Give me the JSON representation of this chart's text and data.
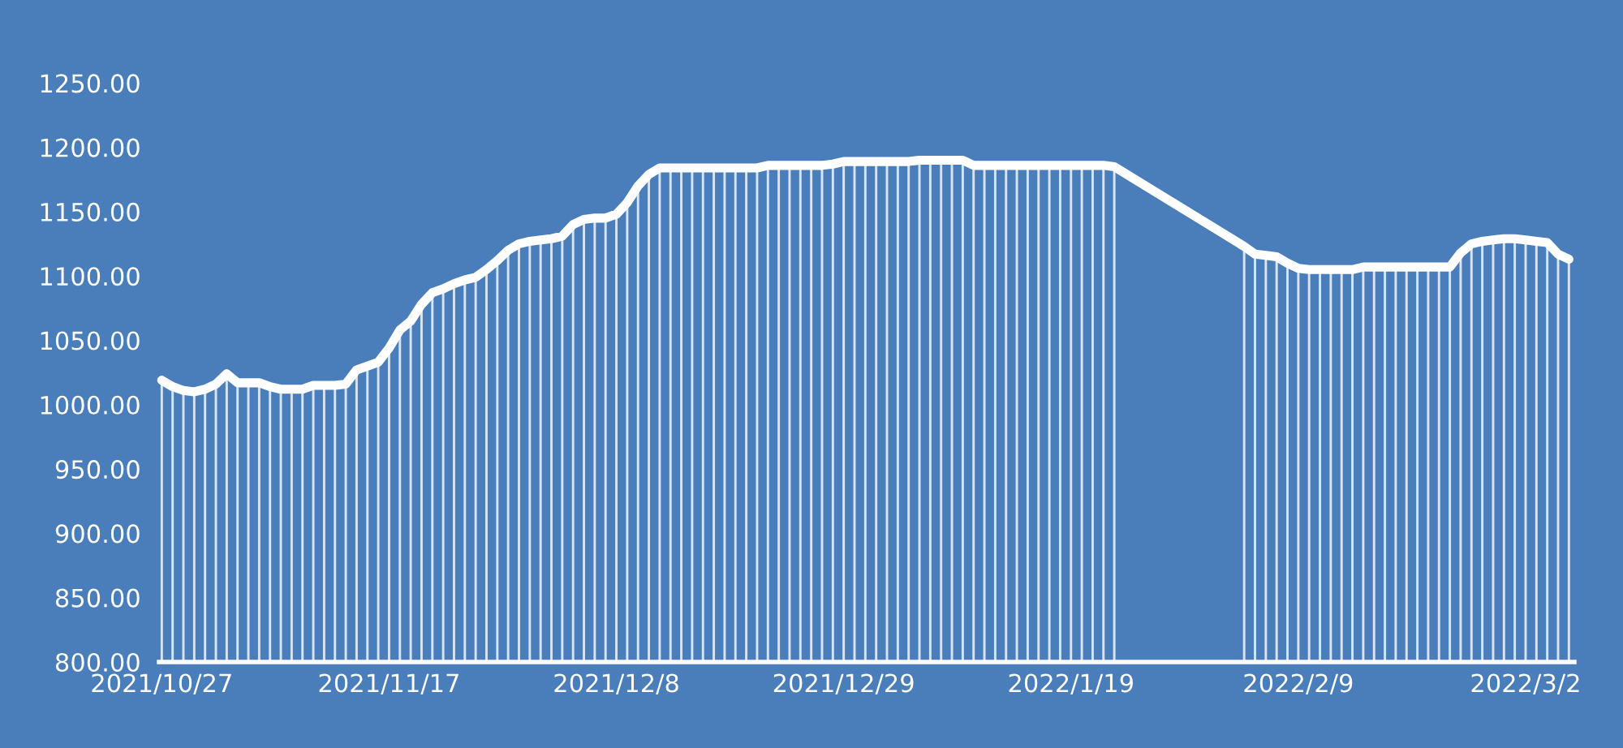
{
  "chart_data": {
    "type": "line",
    "x": [
      "2021-10-27",
      "2021-10-28",
      "2021-10-29",
      "2021-10-30",
      "2021-10-31",
      "2021-11-01",
      "2021-11-02",
      "2021-11-03",
      "2021-11-04",
      "2021-11-05",
      "2021-11-06",
      "2021-11-07",
      "2021-11-08",
      "2021-11-09",
      "2021-11-10",
      "2021-11-11",
      "2021-11-12",
      "2021-11-13",
      "2021-11-14",
      "2021-11-15",
      "2021-11-16",
      "2021-11-17",
      "2021-11-18",
      "2021-11-19",
      "2021-11-20",
      "2021-11-21",
      "2021-11-22",
      "2021-11-23",
      "2021-11-24",
      "2021-11-25",
      "2021-11-26",
      "2021-11-27",
      "2021-11-28",
      "2021-11-29",
      "2021-11-30",
      "2021-12-01",
      "2021-12-02",
      "2021-12-03",
      "2021-12-04",
      "2021-12-05",
      "2021-12-06",
      "2021-12-07",
      "2021-12-08",
      "2021-12-09",
      "2021-12-10",
      "2021-12-11",
      "2021-12-12",
      "2021-12-13",
      "2021-12-14",
      "2021-12-15",
      "2021-12-16",
      "2021-12-17",
      "2021-12-18",
      "2021-12-19",
      "2021-12-20",
      "2021-12-21",
      "2021-12-22",
      "2021-12-23",
      "2021-12-24",
      "2021-12-25",
      "2021-12-26",
      "2021-12-27",
      "2021-12-28",
      "2021-12-29",
      "2021-12-30",
      "2021-12-31",
      "2022-01-01",
      "2022-01-02",
      "2022-01-03",
      "2022-01-04",
      "2022-01-05",
      "2022-01-06",
      "2022-01-07",
      "2022-01-08",
      "2022-01-09",
      "2022-01-10",
      "2022-01-11",
      "2022-01-12",
      "2022-01-13",
      "2022-01-14",
      "2022-01-15",
      "2022-01-16",
      "2022-01-17",
      "2022-01-18",
      "2022-01-19",
      "2022-01-20",
      "2022-01-21",
      "2022-01-22",
      "2022-01-23",
      "2022-02-04",
      "2022-02-05",
      "2022-02-06",
      "2022-02-07",
      "2022-02-08",
      "2022-02-09",
      "2022-02-10",
      "2022-02-11",
      "2022-02-12",
      "2022-02-13",
      "2022-02-14",
      "2022-02-15",
      "2022-02-16",
      "2022-02-17",
      "2022-02-18",
      "2022-02-19",
      "2022-02-20",
      "2022-02-21",
      "2022-02-22",
      "2022-02-23",
      "2022-02-24",
      "2022-02-25",
      "2022-02-26",
      "2022-02-27",
      "2022-02-28",
      "2022-03-01",
      "2022-03-02",
      "2022-03-03",
      "2022-03-04",
      "2022-03-05",
      "2022-03-06"
    ],
    "series": [
      {
        "type": "bar",
        "color": "#d6e4f5",
        "values": [
          1019,
          1014,
          1011,
          1010,
          1012,
          1016,
          1024,
          1017,
          1017,
          1017,
          1014,
          1012,
          1012,
          1012,
          1015,
          1015,
          1015,
          1016,
          1027,
          1030,
          1033,
          1044,
          1058,
          1065,
          1078,
          1087,
          1090,
          1094,
          1097,
          1099,
          1105,
          1112,
          1120,
          1125,
          1127,
          1128,
          1129,
          1131,
          1140,
          1144,
          1145,
          1145,
          1148,
          1157,
          1170,
          1179,
          1184,
          1184,
          1184,
          1184,
          1184,
          1184,
          1184,
          1184,
          1184,
          1184,
          1186,
          1186,
          1186,
          1186,
          1186,
          1186,
          1187,
          1189,
          1189,
          1189,
          1189,
          1189,
          1189,
          1189,
          1190,
          1190,
          1190,
          1190,
          1190,
          1186,
          1186,
          1186,
          1186,
          1186,
          1186,
          1186,
          1186,
          1186,
          1186,
          1186,
          1186,
          1186,
          1185,
          1123,
          1117,
          1116,
          1115,
          1110,
          1106,
          1105,
          1105,
          1105,
          1105,
          1105,
          1107,
          1107,
          1107,
          1107,
          1107,
          1107,
          1107,
          1107,
          1107,
          1118,
          1125,
          1127,
          1128,
          1129,
          1129,
          1128,
          1127,
          1126,
          1117,
          1113
        ]
      },
      {
        "color": "#ffffff",
        "values": [
          1019,
          1014,
          1011,
          1010,
          1012,
          1016,
          1024,
          1017,
          1017,
          1017,
          1014,
          1012,
          1012,
          1012,
          1015,
          1015,
          1015,
          1016,
          1027,
          1030,
          1033,
          1044,
          1058,
          1065,
          1078,
          1087,
          1090,
          1094,
          1097,
          1099,
          1105,
          1112,
          1120,
          1125,
          1127,
          1128,
          1129,
          1131,
          1140,
          1144,
          1145,
          1145,
          1148,
          1157,
          1170,
          1179,
          1184,
          1184,
          1184,
          1184,
          1184,
          1184,
          1184,
          1184,
          1184,
          1184,
          1186,
          1186,
          1186,
          1186,
          1186,
          1186,
          1187,
          1189,
          1189,
          1189,
          1189,
          1189,
          1189,
          1189,
          1190,
          1190,
          1190,
          1190,
          1190,
          1186,
          1186,
          1186,
          1186,
          1186,
          1186,
          1186,
          1186,
          1186,
          1186,
          1186,
          1186,
          1186,
          1185,
          1123,
          1117,
          1116,
          1115,
          1110,
          1106,
          1105,
          1105,
          1105,
          1105,
          1105,
          1107,
          1107,
          1107,
          1107,
          1107,
          1107,
          1107,
          1107,
          1107,
          1118,
          1125,
          1127,
          1128,
          1129,
          1129,
          1128,
          1127,
          1126,
          1117,
          1113
        ]
      }
    ],
    "xlim": [
      "2021-10-26T18:00",
      "2022-03-06T12:00"
    ],
    "xticks": [
      {
        "value": "2021-10-27",
        "label": "2021/10/27"
      },
      {
        "value": "2021-11-17",
        "label": "2021/11/17"
      },
      {
        "value": "2021-12-08",
        "label": "2021/12/8"
      },
      {
        "value": "2021-12-29",
        "label": "2021/12/29"
      },
      {
        "value": "2022-01-19",
        "label": "2022/1/19"
      },
      {
        "value": "2022-02-09",
        "label": "2022/2/9"
      },
      {
        "value": "2022-03-02",
        "label": "2022/3/2"
      }
    ],
    "ylim": [
      800,
      1250
    ],
    "yticks": [
      {
        "value": 800,
        "label": "800.00"
      },
      {
        "value": 850,
        "label": "850.00"
      },
      {
        "value": 900,
        "label": "900.00"
      },
      {
        "value": 950,
        "label": "950.00"
      },
      {
        "value": 1000,
        "label": "1000.00"
      },
      {
        "value": 1050,
        "label": "1050.00"
      },
      {
        "value": 1100,
        "label": "1100.00"
      },
      {
        "value": 1150,
        "label": "1150.00"
      },
      {
        "value": 1200,
        "label": "1200.00"
      },
      {
        "value": 1250,
        "label": "1250.00"
      }
    ],
    "grid": false,
    "marker": "none",
    "line_style": "solid"
  }
}
